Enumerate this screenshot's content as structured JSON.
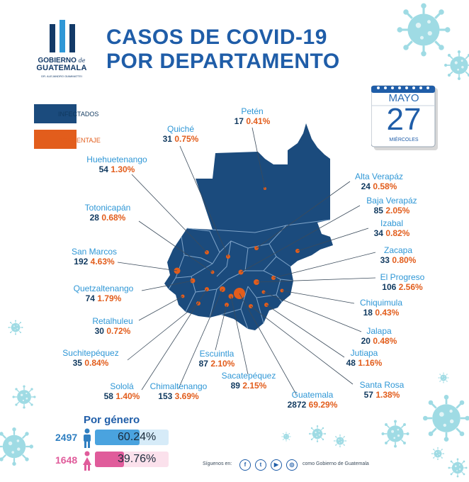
{
  "header": {
    "title_line1": "CASOS DE COVID-19",
    "title_line2": "POR DEPARTAMENTO",
    "logo_line1": "GOBIERNO",
    "logo_de": "de",
    "logo_line2": "GUATEMALA",
    "logo_sub": "DR. ALEJANDRO GIAMMATTEI"
  },
  "legend": {
    "infected_label": "INFECTADOS",
    "percent_label": "PORCENTAJE"
  },
  "calendar": {
    "month": "MAYO",
    "day": "27",
    "weekday": "MIÉRCOLES"
  },
  "departments": [
    {
      "name": "Petén",
      "count": "17",
      "pct": "0.41%"
    },
    {
      "name": "Quiché",
      "count": "31",
      "pct": "0.75%"
    },
    {
      "name": "Huehuetenango",
      "count": "54",
      "pct": "1.30%"
    },
    {
      "name": "Totonicapán",
      "count": "28",
      "pct": "0.68%"
    },
    {
      "name": "San Marcos",
      "count": "192",
      "pct": "4.63%"
    },
    {
      "name": "Quetzaltenango",
      "count": "74",
      "pct": "1.79%"
    },
    {
      "name": "Retalhuleu",
      "count": "30",
      "pct": "0.72%"
    },
    {
      "name": "Suchitepéquez",
      "count": "35",
      "pct": "0.84%"
    },
    {
      "name": "Sololá",
      "count": "58",
      "pct": "1.40%"
    },
    {
      "name": "Chimaltenango",
      "count": "153",
      "pct": "3.69%"
    },
    {
      "name": "Escuintla",
      "count": "87",
      "pct": "2.10%"
    },
    {
      "name": "Sacatepéquez",
      "count": "89",
      "pct": "2.15%"
    },
    {
      "name": "Guatemala",
      "count": "2872",
      "pct": "69.29%"
    },
    {
      "name": "Santa Rosa",
      "count": "57",
      "pct": "1.38%"
    },
    {
      "name": "Jutiapa",
      "count": "48",
      "pct": "1.16%"
    },
    {
      "name": "Jalapa",
      "count": "20",
      "pct": "0.48%"
    },
    {
      "name": "Chiquimula",
      "count": "18",
      "pct": "0.43%"
    },
    {
      "name": "El Progreso",
      "count": "106",
      "pct": "2.56%"
    },
    {
      "name": "Zacapa",
      "count": "33",
      "pct": "0.80%"
    },
    {
      "name": "Izabal",
      "count": "34",
      "pct": "0.82%"
    },
    {
      "name": "Baja Verapáz",
      "count": "85",
      "pct": "2.05%"
    },
    {
      "name": "Alta Verapáz",
      "count": "24",
      "pct": "0.58%"
    }
  ],
  "gender": {
    "title": "Por género",
    "male": {
      "count": "2497",
      "pct": "60.24%",
      "fraction": 0.6024
    },
    "female": {
      "count": "1648",
      "pct": "39.76%",
      "fraction": 0.3976
    }
  },
  "footer": {
    "follow_label": "Síguenos en:",
    "as_label": "como Gobierno de Guatemala",
    "icons": [
      "facebook-icon",
      "twitter-icon",
      "youtube-icon",
      "instagram-icon"
    ]
  },
  "colors": {
    "map_blue": "#1b4b7d",
    "orange": "#e25d1c",
    "light_blue": "#2f97d6",
    "dark_blue": "#10395f",
    "male_bar": "#4aa3df",
    "female_bar": "#e05c9b"
  }
}
